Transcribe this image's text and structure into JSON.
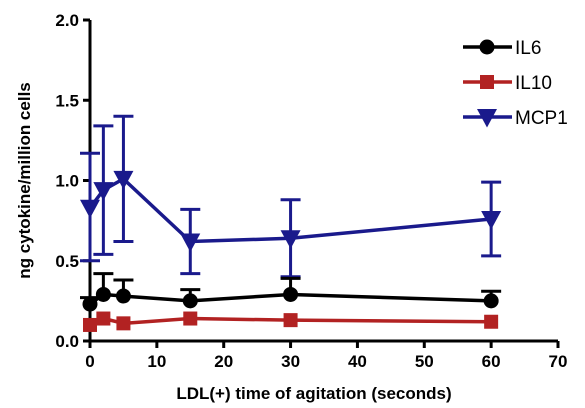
{
  "chart_data": {
    "type": "line",
    "title": "",
    "xlabel": "LDL(+) time of agitation (seconds)",
    "ylabel": "ng cytokine/million cells",
    "xlim": [
      0,
      70
    ],
    "ylim": [
      0,
      2.0
    ],
    "x_ticks": [
      "0",
      "10",
      "20",
      "30",
      "40",
      "50",
      "60",
      "70"
    ],
    "y_ticks": [
      "0.0",
      "0.5",
      "1.0",
      "1.5",
      "2.0"
    ],
    "grid": false,
    "legend_position": "top-right",
    "x": [
      0,
      2,
      5,
      15,
      30,
      60
    ],
    "series": [
      {
        "name": "IL6",
        "marker": "circle",
        "color": "#000000",
        "values": [
          0.23,
          0.29,
          0.28,
          0.25,
          0.29,
          0.25
        ],
        "err_upper": [
          0.27,
          0.42,
          0.38,
          0.32,
          0.39,
          0.31
        ],
        "err_lower": [
          0.23,
          0.29,
          0.28,
          0.25,
          0.29,
          0.25
        ]
      },
      {
        "name": "IL10",
        "marker": "square",
        "color": "#b22222",
        "values": [
          0.1,
          0.14,
          0.11,
          0.14,
          0.13,
          0.12
        ],
        "err_upper": [
          0.1,
          0.14,
          0.11,
          0.14,
          0.13,
          0.12
        ],
        "err_lower": [
          0.1,
          0.14,
          0.11,
          0.14,
          0.13,
          0.12
        ]
      },
      {
        "name": "MCP1",
        "marker": "triangle-down",
        "color": "#1a1a8c",
        "values": [
          0.83,
          0.94,
          1.01,
          0.62,
          0.64,
          0.76
        ],
        "err_upper": [
          1.17,
          1.34,
          1.4,
          0.82,
          0.88,
          0.99
        ],
        "err_lower": [
          0.5,
          0.54,
          0.62,
          0.42,
          0.4,
          0.53
        ]
      }
    ]
  }
}
